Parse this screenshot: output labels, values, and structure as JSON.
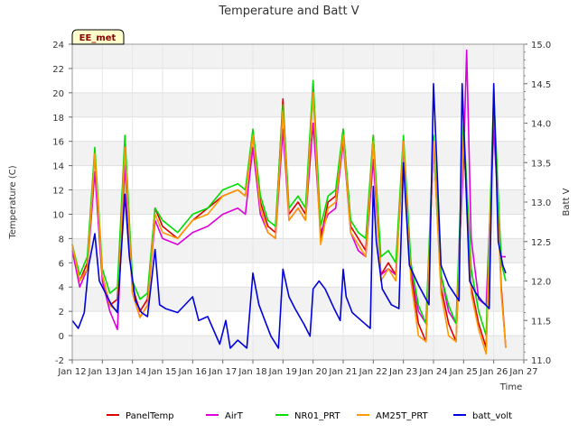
{
  "chart_data": {
    "type": "line",
    "title": "Temperature and Batt V",
    "xlabel": "Time",
    "ylabel": "Temperature (C)",
    "y2label": "Batt V",
    "station_label": "EE_met",
    "xlim": [
      12,
      27
    ],
    "ylim": [
      -2,
      24
    ],
    "y2lim": [
      11.0,
      15.0
    ],
    "x_ticks": [
      {
        "value": 12,
        "label": "Jan 12"
      },
      {
        "value": 13,
        "label": "Jan 13"
      },
      {
        "value": 14,
        "label": "Jan 14"
      },
      {
        "value": 15,
        "label": "Jan 15"
      },
      {
        "value": 16,
        "label": "Jan 16"
      },
      {
        "value": 17,
        "label": "Jan 17"
      },
      {
        "value": 18,
        "label": "Jan 18"
      },
      {
        "value": 19,
        "label": "Jan 19"
      },
      {
        "value": 20,
        "label": "Jan 20"
      },
      {
        "value": 21,
        "label": "Jan 21"
      },
      {
        "value": 22,
        "label": "Jan 22"
      },
      {
        "value": 23,
        "label": "Jan 23"
      },
      {
        "value": 24,
        "label": "Jan 24"
      },
      {
        "value": 25,
        "label": "Jan 25"
      },
      {
        "value": 26,
        "label": "Jan 26"
      },
      {
        "value": 27,
        "label": "Jan 27"
      }
    ],
    "y_ticks": [
      -2,
      0,
      2,
      4,
      6,
      8,
      10,
      12,
      14,
      16,
      18,
      20,
      22,
      24
    ],
    "y2_ticks": [
      {
        "value": 11.0,
        "label": "11.0"
      },
      {
        "value": 11.5,
        "label": "11.5"
      },
      {
        "value": 12.0,
        "label": "12.0"
      },
      {
        "value": 12.5,
        "label": "12.5"
      },
      {
        "value": 13.0,
        "label": "13.0"
      },
      {
        "value": 13.5,
        "label": "13.5"
      },
      {
        "value": 14.0,
        "label": "14.0"
      },
      {
        "value": 14.5,
        "label": "14.5"
      },
      {
        "value": 15.0,
        "label": "15.0"
      }
    ],
    "legend_position": "bottom",
    "series": [
      {
        "name": "PanelTemp",
        "color": "#dd0000",
        "axis": "left",
        "x": [
          12.0,
          12.25,
          12.5,
          12.75,
          13.0,
          13.25,
          13.5,
          13.75,
          14.0,
          14.25,
          14.5,
          14.75,
          15.0,
          15.5,
          16.0,
          16.5,
          17.0,
          17.5,
          17.75,
          18.0,
          18.25,
          18.5,
          18.75,
          19.0,
          19.2,
          19.5,
          19.75,
          20.0,
          20.25,
          20.5,
          20.75,
          21.0,
          21.25,
          21.5,
          21.75,
          22.0,
          22.25,
          22.5,
          22.75,
          23.0,
          23.25,
          23.5,
          23.75,
          24.0,
          24.25,
          24.5,
          24.75,
          25.0,
          25.25,
          25.5,
          25.75,
          26.0,
          26.25,
          26.4
        ],
        "y": [
          7.5,
          4.5,
          6.0,
          15.0,
          5.0,
          2.5,
          3.0,
          15.5,
          4.0,
          2.0,
          3.0,
          10.5,
          9.0,
          8.0,
          9.5,
          10.5,
          11.5,
          12.0,
          11.5,
          16.5,
          11.0,
          9.0,
          8.5,
          19.5,
          10.0,
          11.0,
          10.0,
          20.0,
          8.0,
          11.0,
          11.5,
          17.0,
          9.0,
          8.0,
          7.0,
          16.5,
          5.0,
          6.0,
          5.0,
          16.0,
          5.0,
          1.0,
          -0.5,
          16.0,
          4.0,
          1.0,
          -0.5,
          16.5,
          4.0,
          1.0,
          -1.0,
          19.0,
          4.0,
          -1.0
        ]
      },
      {
        "name": "AirT",
        "color": "#dd00dd",
        "axis": "left",
        "x": [
          12.0,
          12.25,
          12.5,
          12.75,
          13.0,
          13.25,
          13.5,
          13.75,
          14.0,
          14.25,
          14.5,
          14.75,
          15.0,
          15.5,
          16.0,
          16.5,
          17.0,
          17.5,
          17.75,
          18.0,
          18.25,
          18.5,
          18.75,
          19.0,
          19.2,
          19.5,
          19.75,
          20.0,
          20.25,
          20.5,
          20.75,
          21.0,
          21.25,
          21.5,
          21.75,
          22.0,
          22.25,
          22.5,
          22.75,
          23.0,
          23.25,
          23.5,
          23.75,
          24.0,
          24.25,
          24.5,
          24.75,
          25.0,
          25.1,
          25.25,
          25.5,
          25.75,
          26.0,
          26.25,
          26.4
        ],
        "y": [
          7.0,
          4.0,
          5.5,
          13.5,
          4.5,
          2.0,
          0.5,
          14.0,
          3.5,
          1.5,
          2.5,
          9.5,
          8.0,
          7.5,
          8.5,
          9.0,
          10.0,
          10.5,
          10.0,
          15.5,
          10.0,
          8.5,
          8.0,
          17.0,
          9.5,
          10.5,
          9.5,
          17.5,
          8.5,
          10.0,
          10.5,
          16.0,
          8.5,
          7.0,
          6.5,
          14.5,
          5.0,
          5.5,
          5.0,
          15.5,
          5.5,
          2.0,
          1.0,
          15.5,
          5.0,
          2.0,
          1.0,
          14.5,
          23.5,
          8.0,
          3.0,
          2.5,
          17.0,
          6.5,
          6.5
        ]
      },
      {
        "name": "NR01_PRT",
        "color": "#00dd00",
        "axis": "left",
        "x": [
          12.0,
          12.25,
          12.5,
          12.75,
          13.0,
          13.25,
          13.5,
          13.75,
          14.0,
          14.25,
          14.5,
          14.75,
          15.0,
          15.5,
          16.0,
          16.5,
          17.0,
          17.5,
          17.75,
          18.0,
          18.25,
          18.5,
          18.75,
          19.0,
          19.2,
          19.5,
          19.75,
          20.0,
          20.25,
          20.5,
          20.75,
          21.0,
          21.25,
          21.5,
          21.75,
          22.0,
          22.25,
          22.5,
          22.75,
          23.0,
          23.25,
          23.5,
          23.75,
          24.0,
          24.25,
          24.5,
          24.75,
          25.0,
          25.25,
          25.5,
          25.75,
          26.0,
          26.25,
          26.4
        ],
        "y": [
          7.5,
          5.0,
          6.5,
          15.5,
          5.5,
          3.5,
          4.0,
          16.5,
          4.5,
          3.0,
          3.5,
          10.5,
          9.5,
          8.5,
          10.0,
          10.5,
          12.0,
          12.5,
          12.0,
          17.0,
          11.5,
          9.5,
          9.0,
          19.0,
          10.5,
          11.5,
          10.5,
          21.0,
          9.0,
          11.5,
          12.0,
          17.0,
          9.5,
          8.5,
          8.0,
          16.5,
          6.5,
          7.0,
          6.0,
          16.5,
          6.0,
          2.5,
          1.0,
          16.5,
          5.0,
          2.5,
          1.0,
          17.5,
          5.5,
          2.0,
          0.0,
          20.0,
          6.0,
          4.5
        ]
      },
      {
        "name": "AM25T_PRT",
        "color": "#ff9900",
        "axis": "left",
        "x": [
          12.0,
          12.25,
          12.5,
          12.75,
          13.0,
          13.25,
          13.5,
          13.75,
          14.0,
          14.25,
          14.5,
          14.75,
          15.0,
          15.5,
          16.0,
          16.5,
          17.0,
          17.5,
          17.75,
          18.0,
          18.25,
          18.5,
          18.75,
          19.0,
          19.2,
          19.5,
          19.75,
          20.0,
          20.25,
          20.5,
          20.75,
          21.0,
          21.25,
          21.5,
          21.75,
          22.0,
          22.25,
          22.5,
          22.75,
          23.0,
          23.25,
          23.5,
          23.75,
          24.0,
          24.25,
          24.5,
          24.75,
          25.0,
          25.25,
          25.5,
          25.75,
          26.0,
          26.25,
          26.4
        ],
        "y": [
          7.5,
          4.5,
          5.5,
          15.0,
          5.0,
          2.5,
          2.0,
          15.5,
          3.5,
          1.5,
          2.5,
          10.0,
          8.5,
          8.0,
          9.5,
          10.0,
          11.5,
          12.0,
          11.5,
          16.5,
          10.5,
          8.5,
          8.0,
          18.5,
          9.5,
          10.5,
          9.5,
          20.0,
          7.5,
          10.5,
          11.0,
          16.5,
          8.5,
          7.5,
          6.5,
          16.0,
          4.5,
          5.5,
          4.5,
          16.0,
          4.5,
          0.0,
          -0.5,
          16.0,
          3.5,
          0.0,
          -0.5,
          16.5,
          3.5,
          0.5,
          -1.5,
          19.0,
          3.5,
          -1.0
        ]
      },
      {
        "name": "batt_volt",
        "color": "#0000dd",
        "axis": "right",
        "x": [
          12.0,
          12.2,
          12.4,
          12.55,
          12.75,
          12.9,
          13.1,
          13.3,
          13.5,
          13.75,
          13.9,
          14.1,
          14.3,
          14.5,
          14.75,
          14.9,
          15.1,
          15.5,
          16.0,
          16.2,
          16.5,
          16.9,
          17.1,
          17.25,
          17.5,
          17.8,
          18.0,
          18.2,
          18.4,
          18.6,
          18.85,
          19.0,
          19.2,
          19.4,
          19.7,
          19.9,
          20.0,
          20.2,
          20.4,
          20.7,
          20.9,
          21.0,
          21.1,
          21.3,
          21.6,
          21.9,
          22.0,
          22.1,
          22.3,
          22.6,
          22.85,
          23.0,
          23.2,
          23.5,
          23.85,
          24.0,
          24.25,
          24.5,
          24.85,
          24.95,
          25.2,
          25.4,
          25.6,
          25.85,
          26.0,
          26.15,
          26.3,
          26.4
        ],
        "y": [
          11.5,
          11.4,
          11.6,
          12.2,
          12.6,
          12.0,
          11.85,
          11.7,
          11.6,
          13.1,
          12.3,
          11.75,
          11.6,
          11.55,
          12.4,
          11.7,
          11.65,
          11.6,
          11.8,
          11.5,
          11.55,
          11.2,
          11.5,
          11.15,
          11.25,
          11.15,
          12.1,
          11.7,
          11.5,
          11.3,
          11.15,
          12.15,
          11.8,
          11.65,
          11.45,
          11.3,
          11.9,
          12.0,
          11.9,
          11.65,
          11.5,
          12.15,
          11.8,
          11.6,
          11.5,
          11.4,
          13.2,
          12.5,
          11.9,
          11.7,
          11.65,
          13.5,
          12.2,
          11.95,
          11.7,
          14.5,
          12.2,
          11.95,
          11.75,
          14.5,
          12.0,
          11.85,
          11.75,
          11.65,
          14.5,
          12.5,
          12.2,
          12.1
        ]
      }
    ]
  }
}
